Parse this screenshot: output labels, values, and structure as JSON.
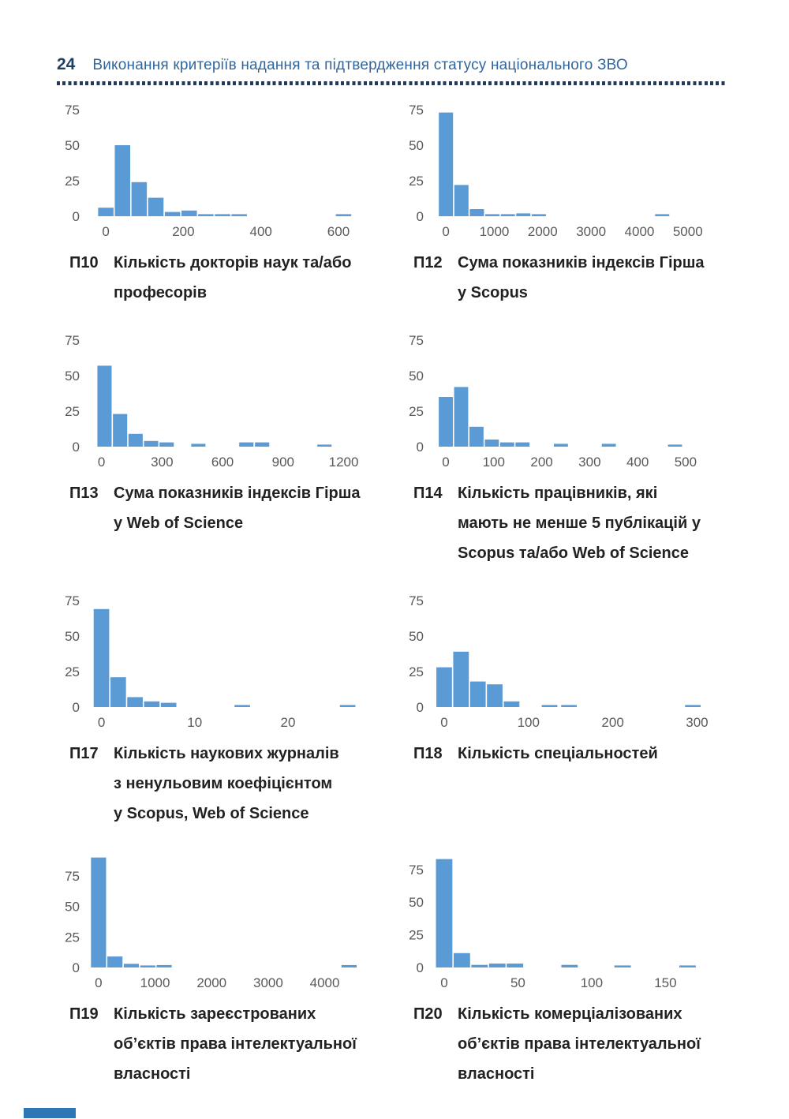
{
  "header": {
    "page_number": "24",
    "title": "Виконання критеріїв надання та підтвердження статусу національного ЗВО"
  },
  "colors": {
    "bar": "#5B9BD5",
    "axis_text": "#595959",
    "page_number": "#1F4061",
    "title": "#31659B",
    "divider_dots": "#1E3A66",
    "footer_bar": "#2F76B5"
  },
  "chart_data": [
    {
      "type": "bar",
      "id": "П10",
      "caption": "Кількість докторів наук та/або\nпрофесорів",
      "title": "Кількість докторів наук та/або професорів",
      "xlabel": "",
      "ylabel": "",
      "yticks": [
        0,
        25,
        50,
        75
      ],
      "xticks": [
        0,
        200,
        400,
        600
      ],
      "xmin": -45,
      "xmax": 655,
      "vmax": 80,
      "bin_width": 43,
      "bars": [
        {
          "x": 0,
          "v": 6
        },
        {
          "x": 43,
          "v": 50
        },
        {
          "x": 86,
          "v": 24
        },
        {
          "x": 129,
          "v": 13
        },
        {
          "x": 172,
          "v": 3
        },
        {
          "x": 215,
          "v": 4
        },
        {
          "x": 258,
          "v": 1
        },
        {
          "x": 301,
          "v": 1
        },
        {
          "x": 344,
          "v": 1
        },
        {
          "x": 613,
          "v": 1
        }
      ]
    },
    {
      "type": "bar",
      "id": "П12",
      "caption": "Сума показників індексів Гірша\nу Scopus",
      "title": "Сума показників індексів Гірша у Scopus",
      "xlabel": "",
      "ylabel": "",
      "yticks": [
        0,
        25,
        50,
        75
      ],
      "xticks": [
        0,
        1000,
        2000,
        3000,
        4000,
        5000
      ],
      "xmin": -280,
      "xmax": 5330,
      "vmax": 80,
      "bin_width": 320,
      "bars": [
        {
          "x": 0,
          "v": 73
        },
        {
          "x": 320,
          "v": 22
        },
        {
          "x": 640,
          "v": 5
        },
        {
          "x": 960,
          "v": 1
        },
        {
          "x": 1280,
          "v": 1
        },
        {
          "x": 1600,
          "v": 2
        },
        {
          "x": 1920,
          "v": 1
        },
        {
          "x": 4470,
          "v": 1
        }
      ]
    },
    {
      "type": "bar",
      "id": "П13",
      "caption": "Сума показників індексів Гірша\nу Web of Science",
      "title": "Сума показників індексів Гірша у Web of Science",
      "xlabel": "",
      "ylabel": "",
      "yticks": [
        0,
        25,
        50,
        75
      ],
      "xticks": [
        0,
        300,
        600,
        900,
        1200
      ],
      "xmin": -65,
      "xmax": 1280,
      "vmax": 80,
      "bin_width": 77,
      "bars": [
        {
          "x": 15,
          "v": 57
        },
        {
          "x": 92,
          "v": 23
        },
        {
          "x": 169,
          "v": 9
        },
        {
          "x": 246,
          "v": 4
        },
        {
          "x": 323,
          "v": 3
        },
        {
          "x": 480,
          "v": 2
        },
        {
          "x": 718,
          "v": 3
        },
        {
          "x": 796,
          "v": 3
        },
        {
          "x": 1105,
          "v": 1
        }
      ]
    },
    {
      "type": "bar",
      "id": "П14",
      "caption": "Кількість працівників, які\nмають не менше 5 публікацій у\nScopus та/або Web of Science",
      "title": "Кількість працівників, які мають не менше 5 публікацій у Scopus та/або Web of Science",
      "xlabel": "",
      "ylabel": "",
      "yticks": [
        0,
        25,
        50,
        75
      ],
      "xticks": [
        0,
        100,
        200,
        300,
        400,
        500
      ],
      "xmin": -28,
      "xmax": 538,
      "vmax": 80,
      "bin_width": 32,
      "bars": [
        {
          "x": 0,
          "v": 35
        },
        {
          "x": 32,
          "v": 42
        },
        {
          "x": 64,
          "v": 14
        },
        {
          "x": 96,
          "v": 5
        },
        {
          "x": 128,
          "v": 3
        },
        {
          "x": 160,
          "v": 3
        },
        {
          "x": 240,
          "v": 2
        },
        {
          "x": 340,
          "v": 2
        },
        {
          "x": 478,
          "v": 1
        }
      ]
    },
    {
      "type": "bar",
      "id": "П17",
      "caption": "Кількість наукових журналів\nз ненульовим коефіцієнтом\nу Scopus, Web of Science",
      "title": "Кількість наукових журналів з ненульовим коефіцієнтом у Scopus, Web of Science",
      "xlabel": "",
      "ylabel": "",
      "yticks": [
        0,
        25,
        50,
        75
      ],
      "xticks": [
        0,
        10,
        20
      ],
      "xmin": -1.4,
      "xmax": 27.7,
      "vmax": 80,
      "bin_width": 1.8,
      "bars": [
        {
          "x": 0,
          "v": 69
        },
        {
          "x": 1.8,
          "v": 21
        },
        {
          "x": 3.6,
          "v": 7
        },
        {
          "x": 5.4,
          "v": 4
        },
        {
          "x": 7.2,
          "v": 3
        },
        {
          "x": 15.1,
          "v": 1
        },
        {
          "x": 26.4,
          "v": 1
        }
      ]
    },
    {
      "type": "bar",
      "id": "П18",
      "caption": "Кількість спеціальностей",
      "title": "Кількість спеціальностей",
      "xlabel": "",
      "ylabel": "",
      "yticks": [
        0,
        25,
        50,
        75
      ],
      "xticks": [
        0,
        100,
        200,
        300
      ],
      "xmin": -14,
      "xmax": 308,
      "vmax": 80,
      "bin_width": 20,
      "bars": [
        {
          "x": 0,
          "v": 28
        },
        {
          "x": 20,
          "v": 39
        },
        {
          "x": 40,
          "v": 18
        },
        {
          "x": 60,
          "v": 16
        },
        {
          "x": 80,
          "v": 4
        },
        {
          "x": 125,
          "v": 1
        },
        {
          "x": 148,
          "v": 1
        },
        {
          "x": 295,
          "v": 1
        }
      ]
    },
    {
      "type": "bar",
      "id": "П19",
      "caption": "Кількість зареєстрованих\nоб’єктів права інтелектуальної\nвласності",
      "title": "Кількість зареєстрованих об’єктів права інтелектуальної власності",
      "xlabel": "",
      "ylabel": "",
      "yticks": [
        0,
        25,
        50,
        75
      ],
      "xticks": [
        0,
        1000,
        2000,
        3000,
        4000
      ],
      "xmin": -180,
      "xmax": 4620,
      "vmax": 93,
      "bin_width": 290,
      "bars": [
        {
          "x": 0,
          "v": 90
        },
        {
          "x": 290,
          "v": 9
        },
        {
          "x": 580,
          "v": 3
        },
        {
          "x": 870,
          "v": 1
        },
        {
          "x": 1160,
          "v": 2
        },
        {
          "x": 4430,
          "v": 2
        }
      ]
    },
    {
      "type": "bar",
      "id": "П20",
      "caption": "Кількість комерціалізованих\nоб’єктів права інтелектуальної\nвласності",
      "title": "Кількість комерціалізованих об’єктів права інтелектуальної власності",
      "xlabel": "",
      "ylabel": "",
      "yticks": [
        0,
        25,
        50,
        75
      ],
      "xticks": [
        0,
        50,
        100,
        150
      ],
      "xmin": -8,
      "xmax": 176,
      "vmax": 87,
      "bin_width": 12,
      "bars": [
        {
          "x": 0,
          "v": 83
        },
        {
          "x": 12,
          "v": 11
        },
        {
          "x": 24,
          "v": 2
        },
        {
          "x": 36,
          "v": 3
        },
        {
          "x": 48,
          "v": 3
        },
        {
          "x": 85,
          "v": 2
        },
        {
          "x": 121,
          "v": 1
        },
        {
          "x": 165,
          "v": 1
        }
      ]
    }
  ]
}
